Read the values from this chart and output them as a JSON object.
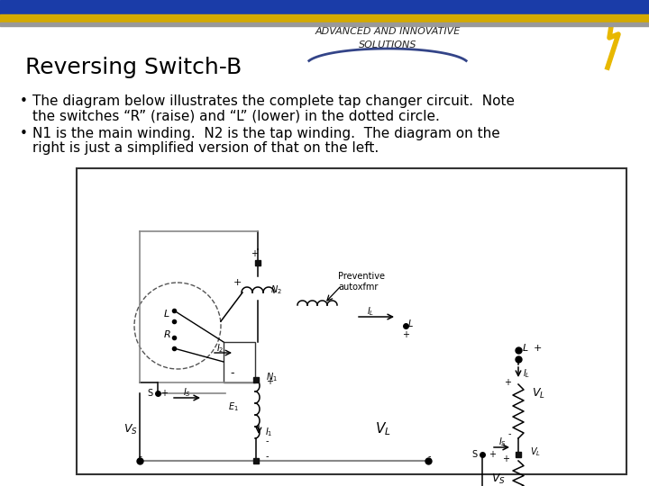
{
  "title": "Reversing Switch-B",
  "bullet1": "The diagram below illustrates the complete tap changer circuit.  Note\n    the switches “R” (raise) and “L” (lower) in the dotted circle.",
  "bullet2": "N1 is the main winding.  N2 is the tap winding.  The diagram on the\n    right is just a simplified version of that on the left.",
  "bg_color": "#ffffff",
  "bar_blue": "#1a3ca8",
  "bar_gold": "#d4aa00",
  "bar_gray": "#999999",
  "header_label": "ADVANCED AND INNOVATIVE\nSOLUTIONS",
  "title_fontsize": 18,
  "bullet_fontsize": 11,
  "text_color": "#000000"
}
